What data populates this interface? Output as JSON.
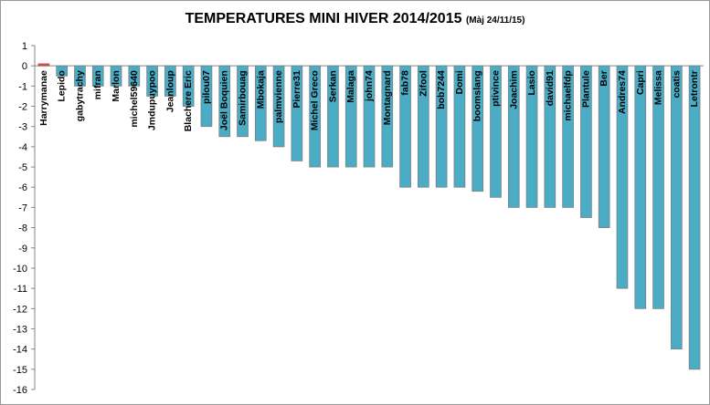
{
  "chart_data": {
    "type": "bar",
    "title": "TEMPERATURES MINI HIVER 2014/2015",
    "subtitle": "(Màj 24/11/15)",
    "ylim": [
      -16,
      1
    ],
    "yticks": [
      1,
      0,
      -1,
      -2,
      -3,
      -4,
      -5,
      -6,
      -7,
      -8,
      -9,
      -10,
      -11,
      -12,
      -13,
      -14,
      -15,
      -16
    ],
    "grid": false,
    "bar_color": "#4bacc6",
    "highlight_color": "#c0504d",
    "categories": [
      "Harrymanae",
      "Lepido",
      "gabytrachy",
      "mifran",
      "Marlon",
      "michel59640",
      "Jmdupuypoo",
      "Jeanloup",
      "Blachere Eric",
      "pilou07",
      "Joël Boquien",
      "Samirbouag",
      "Mbokaja",
      "palmvienne",
      "Pierre31",
      "Michel Greco",
      "Serkan",
      "Malaga",
      "john74",
      "Montagnard",
      "fab78",
      "Zifool",
      "bob7244",
      "Domi",
      "boomslang",
      "ptivince",
      "Joachim",
      "Lasio",
      "david91",
      "michaelfdp",
      "Plantule",
      "Ber",
      "Andres74",
      "Capri",
      "Melissa",
      "coatis",
      "Letrontr"
    ],
    "values": [
      0.1,
      -0.5,
      -1,
      -1,
      -1,
      -1,
      -1.5,
      -1.5,
      -2,
      -3,
      -3.5,
      -3.5,
      -3.7,
      -4,
      -4.7,
      -5,
      -5,
      -5,
      -5,
      -5,
      -6,
      -6,
      -6,
      -6,
      -6.2,
      -6.5,
      -7,
      -7,
      -7,
      -7,
      -7.5,
      -8,
      -11,
      -12,
      -12,
      -14,
      -15
    ]
  }
}
